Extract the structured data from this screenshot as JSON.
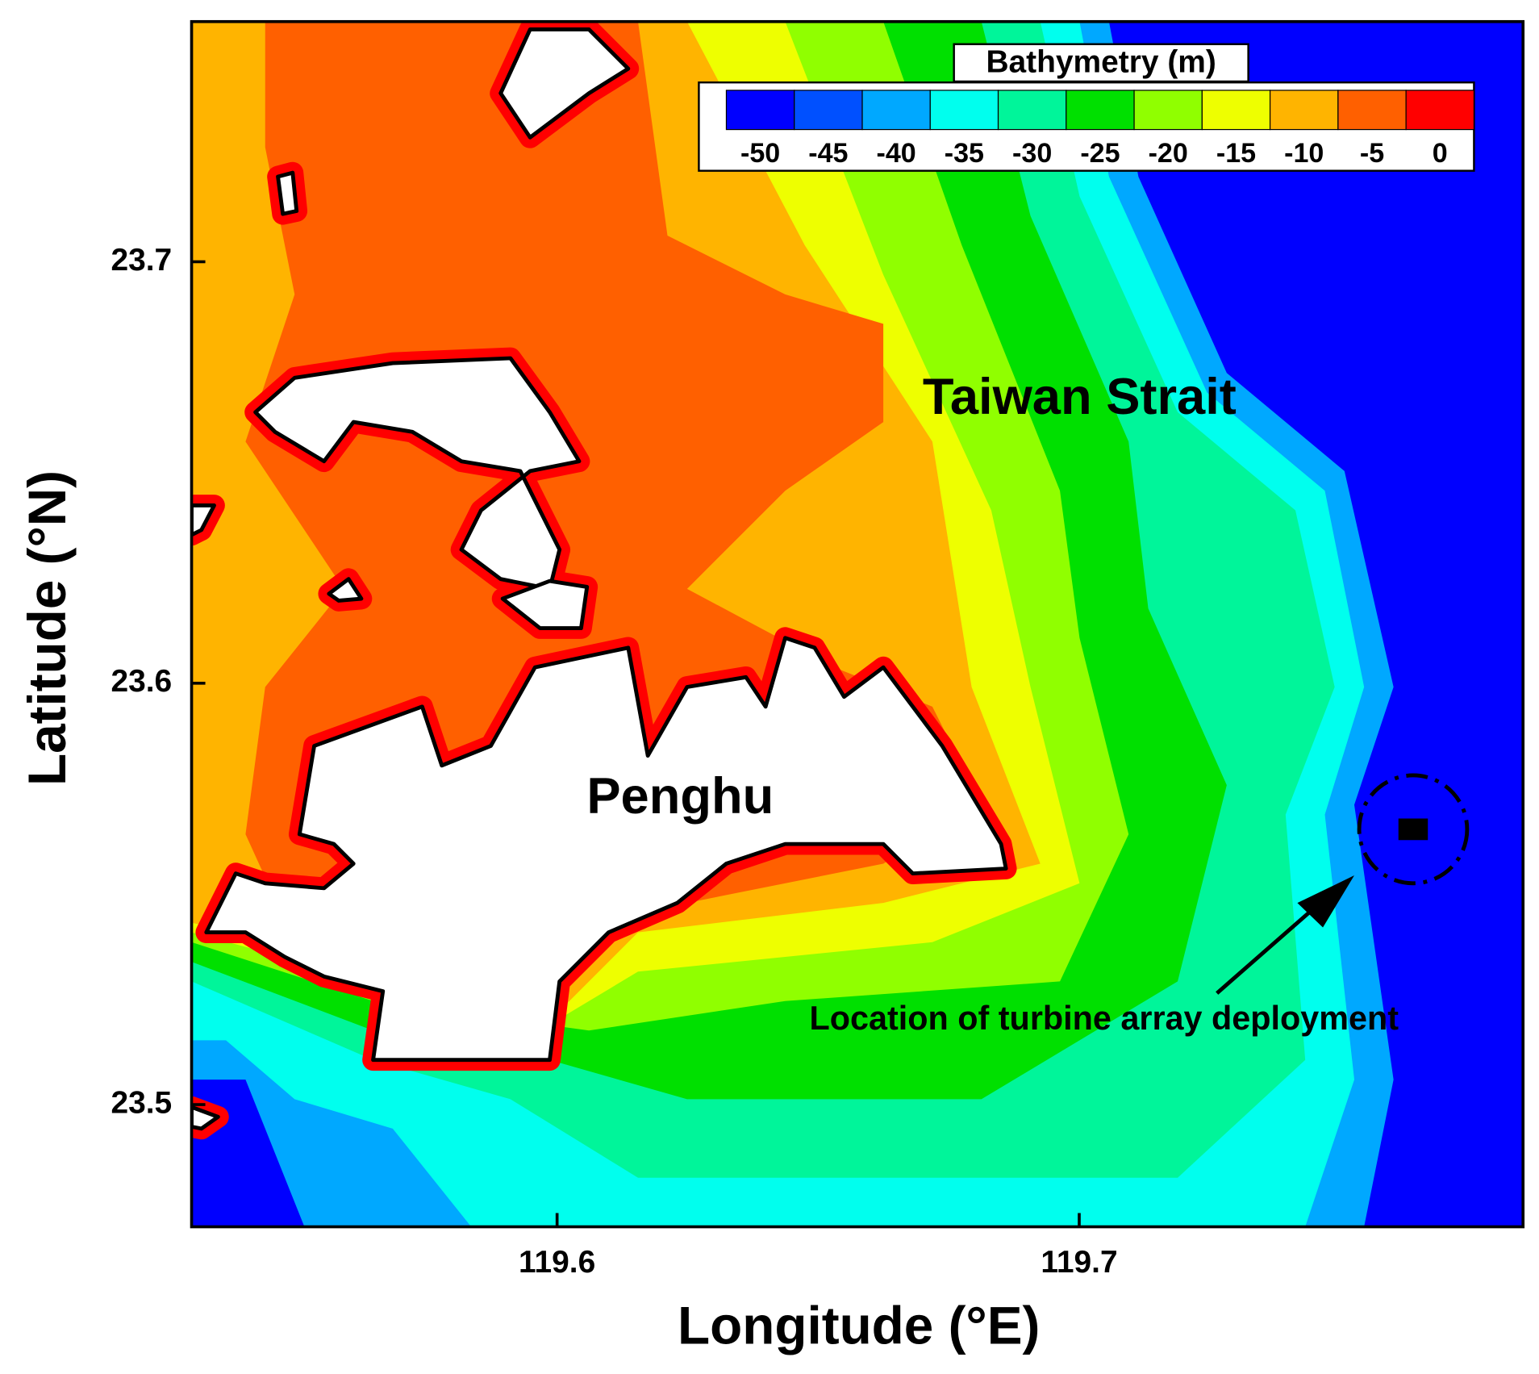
{
  "chart_data": {
    "type": "contour",
    "x_label": "Longitude (°E)",
    "y_label": "Latitude (°N)",
    "xlim": [
      119.53,
      119.785
    ],
    "ylim": [
      23.471,
      23.757
    ],
    "xticks": [
      119.6,
      119.7
    ],
    "yticks": [
      23.5,
      23.6,
      23.7
    ],
    "colorbar": {
      "title": "Bathymetry (m)",
      "ticks": [
        -50,
        -45,
        -40,
        -35,
        -30,
        -25,
        -20,
        -15,
        -10,
        -5,
        0
      ],
      "colors": [
        "#0000ff",
        "#0050ff",
        "#00a8ff",
        "#00ffee",
        "#00f59a",
        "#00e000",
        "#90ff00",
        "#eeff00",
        "#ffb400",
        "#ff6000",
        "#ff0000"
      ]
    },
    "annotations": [
      "Taiwan Strait",
      "Penghu",
      "Location of turbine array deployment"
    ]
  }
}
